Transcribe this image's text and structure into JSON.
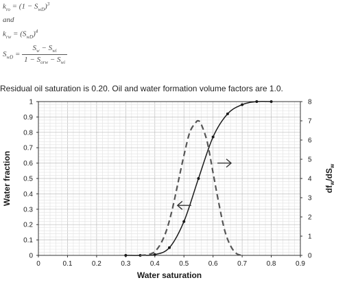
{
  "equations": {
    "kro_lhs": "k",
    "kro_lhs_sub": "ro",
    "kro_rhs": "= (1 − S",
    "kro_rhs_sub": "wD",
    "kro_rhs_close": ")",
    "kro_exp": "3",
    "and_word": "and",
    "krw_lhs": "k",
    "krw_lhs_sub": "rw",
    "krw_rhs": "= (S",
    "krw_rhs_sub": "wD",
    "krw_rhs_close": ")",
    "krw_exp": "4",
    "swd_lhs": "S",
    "swd_lhs_sub": "wD",
    "swd_eq": "=",
    "swd_num": "S",
    "swd_num_sub1": "w",
    "swd_num_mid": " − S",
    "swd_num_sub2": "wi",
    "swd_den": "1 − S",
    "swd_den_sub1": "orw",
    "swd_den_mid": " − S",
    "swd_den_sub2": "wi"
  },
  "note": "Residual oil saturation is 0.20. Oil and water formation volume factors are 1.0.",
  "chart_data": {
    "type": "line",
    "xlabel": "Water saturation",
    "ylabel": "Water fraction",
    "y2label_main": "df",
    "y2label_sub1": "w",
    "y2label_mid": "/dS",
    "y2label_sub2": "w",
    "xlim": [
      0,
      0.9
    ],
    "ylim": [
      0,
      1
    ],
    "y2lim": [
      0,
      8
    ],
    "x_ticks": [
      "0",
      "0.1",
      "0.2",
      "0.3",
      "0.4",
      "0.5",
      "0.6",
      "0.7",
      "0.8",
      "0.9"
    ],
    "y_ticks": [
      "0",
      "0.1",
      "0.2",
      "0.3",
      "0.4",
      "0.5",
      "0.6",
      "0.7",
      "0.8",
      "0.9",
      "1"
    ],
    "y2_ticks": [
      "0",
      "1",
      "2",
      "3",
      "4",
      "5",
      "6",
      "7",
      "8"
    ],
    "grid": true,
    "series": [
      {
        "axis": "left",
        "style": "solid-with-markers",
        "color": "#1a1a1a",
        "x": [
          0.3,
          0.35,
          0.4,
          0.45,
          0.5,
          0.55,
          0.6,
          0.65,
          0.7,
          0.75,
          0.8
        ],
        "y": [
          0.0,
          0.0,
          0.005,
          0.05,
          0.22,
          0.5,
          0.77,
          0.92,
          0.98,
          1.0,
          1.0
        ]
      },
      {
        "axis": "right",
        "style": "dashed",
        "color": "#555555",
        "x": [
          0.35,
          0.38,
          0.4,
          0.42,
          0.44,
          0.46,
          0.48,
          0.5,
          0.52,
          0.54,
          0.55,
          0.56,
          0.58,
          0.6,
          0.62,
          0.64,
          0.66,
          0.68,
          0.7
        ],
        "y": [
          0.0,
          0.05,
          0.2,
          0.6,
          1.3,
          2.4,
          3.8,
          5.2,
          6.4,
          6.9,
          7.0,
          6.8,
          5.9,
          4.3,
          2.7,
          1.3,
          0.5,
          0.1,
          0.0
        ]
      }
    ],
    "annotations": [
      {
        "type": "arrow",
        "direction": "left",
        "x": 0.525,
        "y2": 2.6
      },
      {
        "type": "arrow",
        "direction": "right",
        "x": 0.615,
        "y2": 4.8
      }
    ]
  }
}
